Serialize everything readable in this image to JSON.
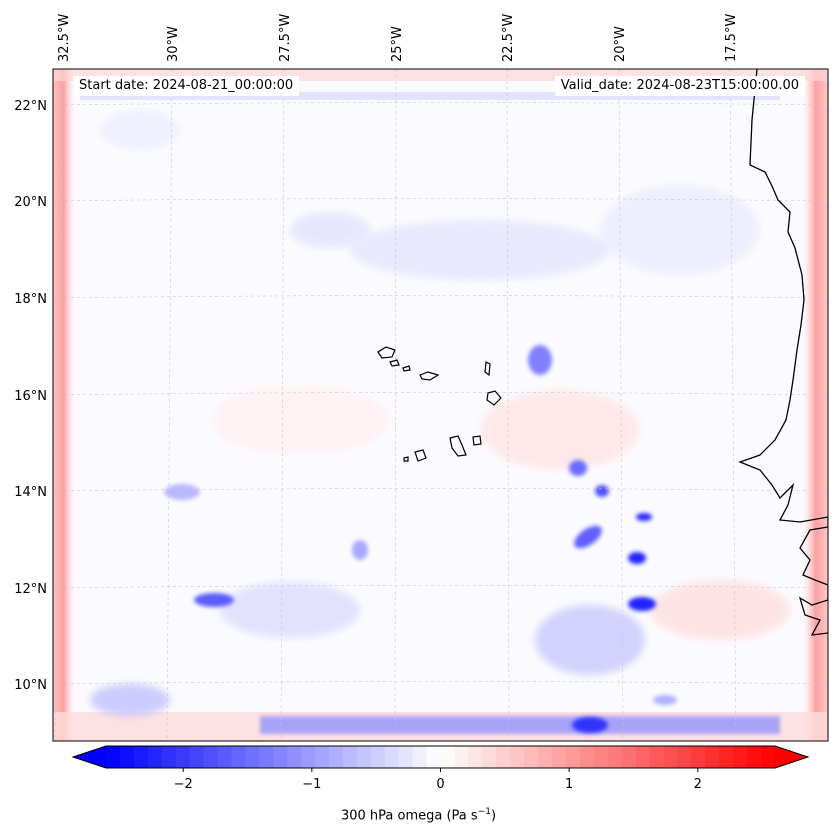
{
  "map": {
    "variable": "300 hPa omega",
    "units": "Pa s",
    "units_exponent": "−1",
    "start_date_label": "Start date: 2024-08-21_00:00:00",
    "valid_date_label": "Valid_date: 2024-08-23T15:00:00.00",
    "extent": {
      "lon_min": -33.0,
      "lon_max": -15.0,
      "lat_min": 8.5,
      "lat_max": 22.5
    },
    "lon_ticks": [
      "32.5°W",
      "30°W",
      "27.5°W",
      "25°W",
      "22.5°W",
      "20°W",
      "17.5°W"
    ],
    "lat_ticks": [
      "22°N",
      "20°N",
      "18°N",
      "16°N",
      "14°N",
      "12°N",
      "10°N"
    ],
    "colormap": {
      "low": "#0000ff",
      "mid": "#ffffff",
      "high": "#ff0000"
    },
    "coastline_color": "#000000",
    "gridlines": true
  },
  "colorbar": {
    "range": [
      -2.6,
      2.6
    ],
    "extend": "both",
    "tick_labels": [
      "−2",
      "−1",
      "0",
      "1",
      "2"
    ],
    "tick_values": [
      -2,
      -1,
      0,
      1,
      2
    ]
  }
}
